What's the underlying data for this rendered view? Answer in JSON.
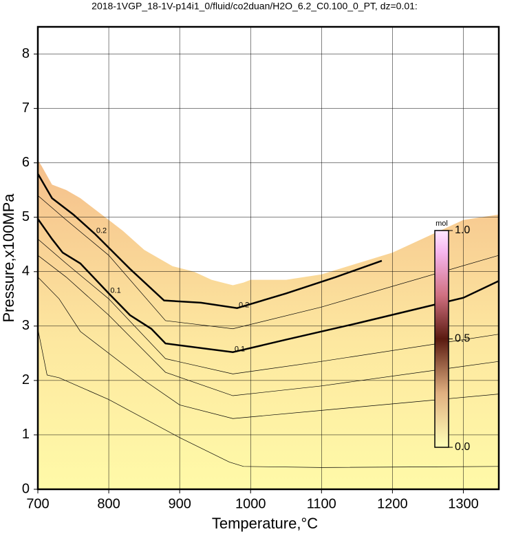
{
  "chart_data": {
    "type": "contour",
    "title": "2018-1VGP_18-1V-p14i1_0/fluid/co2duan/H2O_6.2_C0.100_0_PT, dz=0.01:",
    "xlabel": "Temperature,°C",
    "ylabel": "Pressure,x100MPa",
    "xlim": [
      700,
      1350
    ],
    "ylim": [
      0,
      8.5
    ],
    "xticks": [
      700,
      800,
      900,
      1000,
      1100,
      1200,
      1300
    ],
    "yticks": [
      0,
      1,
      2,
      3,
      4,
      5,
      6,
      7,
      8
    ],
    "grid": true,
    "field": {
      "x": [
        700,
        705,
        720,
        740,
        760,
        780,
        800,
        820,
        850,
        870,
        890,
        920,
        945,
        960,
        975,
        990,
        1000,
        1050,
        1100,
        1150,
        1200,
        1250,
        1300,
        1350
      ],
      "y": [
        6.05,
        5.95,
        5.6,
        5.5,
        5.35,
        5.15,
        4.95,
        4.75,
        4.4,
        4.25,
        4.1,
        4.0,
        3.85,
        3.8,
        3.75,
        3.8,
        3.85,
        3.85,
        3.95,
        4.15,
        4.35,
        4.65,
        4.95,
        5.05
      ]
    },
    "contours": [
      {
        "x": [
          700,
          713,
          730,
          800,
          900,
          970,
          990,
          1100,
          1350
        ],
        "y": [
          2.95,
          2.1,
          2.05,
          1.65,
          0.95,
          0.5,
          0.42,
          0.4,
          0.42
        ]
      },
      {
        "x": [
          700,
          730,
          760,
          850,
          900,
          975,
          1100,
          1350
        ],
        "y": [
          3.9,
          3.5,
          2.9,
          2.0,
          1.55,
          1.3,
          1.45,
          1.75
        ]
      },
      {
        "x": [
          700,
          740,
          800,
          880,
          975,
          1100,
          1350
        ],
        "y": [
          4.3,
          3.9,
          3.2,
          2.15,
          1.72,
          1.9,
          2.35
        ]
      },
      {
        "x": [
          700,
          740,
          800,
          880,
          975,
          1100,
          1350
        ],
        "y": [
          4.6,
          4.15,
          3.5,
          2.4,
          2.12,
          2.35,
          2.85
        ]
      },
      {
        "level": 0.1,
        "x": [
          700,
          720,
          735,
          760,
          800,
          830,
          860,
          880,
          975,
          1050,
          1150,
          1300,
          1350
        ],
        "y": [
          4.97,
          4.6,
          4.35,
          4.15,
          3.6,
          3.2,
          2.95,
          2.68,
          2.52,
          2.75,
          3.05,
          3.52,
          3.83
        ]
      },
      {
        "x": [
          700,
          740,
          800,
          880,
          975,
          1100,
          1350
        ],
        "y": [
          5.4,
          4.95,
          4.3,
          3.1,
          2.95,
          3.35,
          4.3
        ]
      },
      {
        "level": 0.2,
        "x": [
          700,
          720,
          750,
          780,
          830,
          878,
          930,
          981,
          1050,
          1120,
          1185
        ],
        "y": [
          5.8,
          5.35,
          5.05,
          4.7,
          4.05,
          3.47,
          3.43,
          3.33,
          3.6,
          3.9,
          4.2
        ]
      }
    ],
    "colorbar": {
      "label": "mol",
      "lim": [
        0,
        1
      ],
      "ticks": [
        {
          "value": 0,
          "label": "0.0"
        },
        {
          "value": 0.5,
          "label": "0.5"
        },
        {
          "value": 1,
          "label": "1.0"
        }
      ]
    }
  }
}
